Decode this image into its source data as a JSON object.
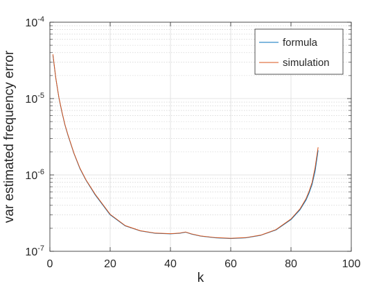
{
  "chart_data": {
    "type": "line",
    "title": "",
    "xlabel": "k",
    "ylabel": "var estimated frequency error",
    "xlim": [
      0,
      100
    ],
    "ylim": [
      1e-07,
      0.0001
    ],
    "yscale": "log",
    "grid": true,
    "legend_position": "top-right",
    "x_ticks": [
      0,
      20,
      40,
      60,
      80,
      100
    ],
    "y_ticks": [
      {
        "value": 1e-07,
        "base": "10",
        "exp": "-7"
      },
      {
        "value": 1e-06,
        "base": "10",
        "exp": "-6"
      },
      {
        "value": 1e-05,
        "base": "10",
        "exp": "-5"
      },
      {
        "value": 0.0001,
        "base": "10",
        "exp": "-4"
      }
    ],
    "series": [
      {
        "name": "formula",
        "color": "#0072bd",
        "x": [
          1,
          2,
          3,
          4,
          5,
          6,
          8,
          10,
          12,
          15,
          20,
          25,
          30,
          35,
          40,
          43,
          45,
          47,
          50,
          55,
          60,
          65,
          70,
          75,
          80,
          83,
          85,
          86,
          87,
          88,
          89
        ],
        "y": [
          3.7e-05,
          1.8e-05,
          1.02e-05,
          6.6e-06,
          4.5e-06,
          3.3e-06,
          1.9e-06,
          1.2e-06,
          8.5e-07,
          5.5e-07,
          3e-07,
          2.15e-07,
          1.85e-07,
          1.72e-07,
          1.69e-07,
          1.72e-07,
          1.78e-07,
          1.68e-07,
          1.58e-07,
          1.5e-07,
          1.47e-07,
          1.5e-07,
          1.62e-07,
          1.9e-07,
          2.6e-07,
          3.5e-07,
          4.7e-07,
          5.8e-07,
          7.5e-07,
          1.12e-06,
          2.1e-06
        ]
      },
      {
        "name": "simulation",
        "color": "#d95319",
        "x": [
          1,
          2,
          3,
          4,
          5,
          6,
          8,
          10,
          12,
          15,
          20,
          25,
          30,
          35,
          40,
          43,
          45,
          47,
          50,
          55,
          60,
          65,
          70,
          75,
          80,
          83,
          85,
          86,
          87,
          88,
          89
        ],
        "y": [
          3.8e-05,
          1.82e-05,
          1.03e-05,
          6.7e-06,
          4.55e-06,
          3.35e-06,
          1.92e-06,
          1.22e-06,
          8.6e-07,
          5.6e-07,
          3.05e-07,
          2.17e-07,
          1.86e-07,
          1.73e-07,
          1.7e-07,
          1.73e-07,
          1.79e-07,
          1.69e-07,
          1.59e-07,
          1.51e-07,
          1.48e-07,
          1.51e-07,
          1.63e-07,
          1.92e-07,
          2.65e-07,
          3.6e-07,
          4.9e-07,
          6.1e-07,
          8e-07,
          1.25e-06,
          2.3e-06
        ]
      }
    ]
  }
}
